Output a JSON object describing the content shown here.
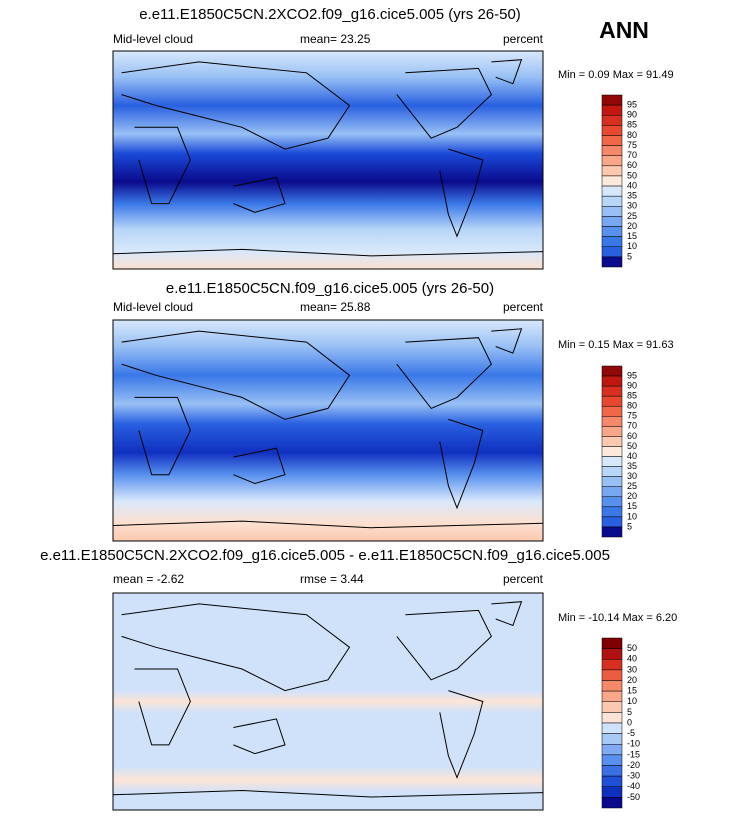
{
  "header": {
    "season": "ANN"
  },
  "panels": [
    {
      "title": "e.e11.E1850C5CN.2XCO2.f09_g16.cice5.005 (yrs 26-50)",
      "left": "Mid-level cloud",
      "center": "mean=  23.25",
      "right": "percent",
      "minmax": "Min =   0.09 Max =  91.49",
      "levels": [
        95,
        90,
        85,
        80,
        75,
        70,
        60,
        50,
        40,
        35,
        30,
        25,
        20,
        15,
        10,
        5
      ],
      "colors": [
        "#900808",
        "#c01810",
        "#d83020",
        "#e84830",
        "#f06848",
        "#f48868",
        "#f8a888",
        "#fbc8b0",
        "#fde8dc",
        "#d8e8fb",
        "#b8d6f8",
        "#98c0f5",
        "#78a8f2",
        "#5890ee",
        "#3a78e8",
        "#2860e0",
        "#0a0a8c"
      ]
    },
    {
      "title": "e.e11.E1850C5CN.f09_g16.cice5.005 (yrs 26-50)",
      "left": "Mid-level cloud",
      "center": "mean=  25.88",
      "right": "percent",
      "minmax": "Min =   0.15 Max =  91.63",
      "levels": [
        95,
        90,
        85,
        80,
        75,
        70,
        60,
        50,
        40,
        35,
        30,
        25,
        20,
        15,
        10,
        5
      ],
      "colors": [
        "#900808",
        "#c01810",
        "#d83020",
        "#e84830",
        "#f06848",
        "#f48868",
        "#f8a888",
        "#fbc8b0",
        "#fde8dc",
        "#d8e8fb",
        "#b8d6f8",
        "#98c0f5",
        "#78a8f2",
        "#5890ee",
        "#3a78e8",
        "#2860e0",
        "#0a0a8c"
      ]
    },
    {
      "title": "e.e11.E1850C5CN.2XCO2.f09_g16.cice5.005 - e.e11.E1850C5CN.f09_g16.cice5.005",
      "left": "mean =  -2.62",
      "center": "rmse =   3.44",
      "right": "percent",
      "minmax": "Min = -10.14 Max =   6.20",
      "levels": [
        50,
        40,
        30,
        20,
        15,
        10,
        5,
        0,
        -5,
        -10,
        -15,
        -20,
        -30,
        -40,
        -50
      ],
      "colors": [
        "#800000",
        "#b01010",
        "#d83020",
        "#ec5c40",
        "#f48868",
        "#f8a888",
        "#fbc8b0",
        "#fde4d6",
        "#d0e2fa",
        "#a8c8f6",
        "#80aaf2",
        "#5890ee",
        "#3a70e4",
        "#2050d8",
        "#1030c0",
        "#0a0a8c"
      ]
    }
  ]
}
